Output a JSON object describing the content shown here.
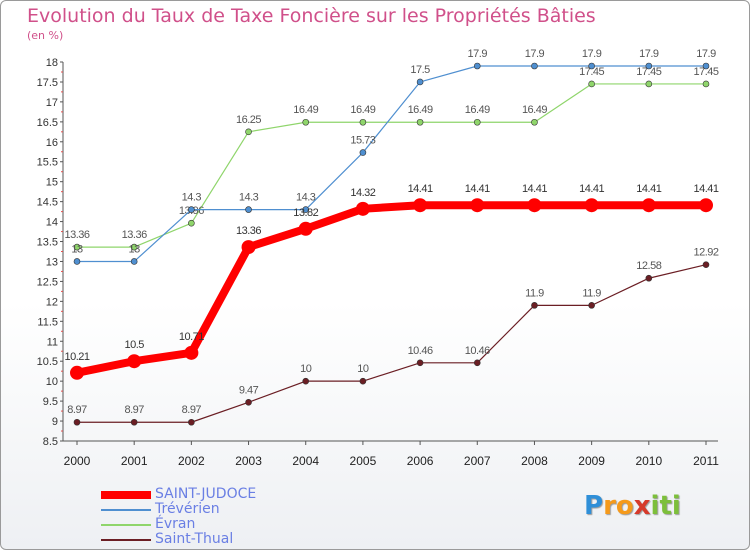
{
  "chart_data": {
    "type": "line",
    "title": "Evolution du Taux de Taxe Foncière sur les Propriétés Bâties",
    "unit_label": "(en %)",
    "x": [
      "2000",
      "2001",
      "2002",
      "2003",
      "2004",
      "2005",
      "2006",
      "2007",
      "2008",
      "2009",
      "2010",
      "2011"
    ],
    "ylim": [
      8.5,
      18
    ],
    "yticks": [
      "8.5",
      "9",
      "9.5",
      "10",
      "10.5",
      "11",
      "11.5",
      "12",
      "12.5",
      "13",
      "13.5",
      "14",
      "14.5",
      "15",
      "15.5",
      "16",
      "16.5",
      "17",
      "17.5",
      "18"
    ],
    "series": [
      {
        "name": "Saint-Thual",
        "color": "#6b1e24",
        "values": [
          8.97,
          8.97,
          8.97,
          9.47,
          10,
          10,
          10.46,
          10.46,
          11.9,
          11.9,
          12.58,
          12.92
        ],
        "labels": [
          "8.97",
          "8.97",
          "8.97",
          "9.47",
          "10",
          "10",
          "10.46",
          "10.46",
          "11.9",
          "11.9",
          "12.58",
          "12.92"
        ]
      },
      {
        "name": "Évran",
        "color": "#8fd56b",
        "values": [
          13.36,
          13.36,
          13.96,
          16.25,
          16.49,
          16.49,
          16.49,
          16.49,
          16.49,
          17.45,
          17.45,
          17.45
        ],
        "labels": [
          "13.36",
          "13.36",
          "13.96",
          "16.25",
          "16.49",
          "16.49",
          "16.49",
          "16.49",
          "16.49",
          "17.45",
          "17.45",
          "17.45"
        ]
      },
      {
        "name": "Trévérien",
        "color": "#4f8fd0",
        "values": [
          13,
          13,
          14.3,
          14.3,
          14.3,
          15.73,
          17.5,
          17.9,
          17.9,
          17.9,
          17.9,
          17.9
        ],
        "labels": [
          "13",
          "13",
          "14.3",
          "14.3",
          "14.3",
          "15.73",
          "17.5",
          "17.9",
          "17.9",
          "17.9",
          "17.9",
          "17.9"
        ]
      },
      {
        "name": "SAINT-JUDOCE",
        "color": "#ff0000",
        "values": [
          10.21,
          10.5,
          10.71,
          13.36,
          13.82,
          14.32,
          14.41,
          14.41,
          14.41,
          14.41,
          14.41,
          14.41
        ],
        "labels": [
          "10.21",
          "10.5",
          "10.71",
          "13.36",
          "13.82",
          "14.32",
          "14.41",
          "14.41",
          "14.41",
          "14.41",
          "14.41",
          "14.41"
        ]
      }
    ],
    "legend": [
      {
        "name": "SAINT-JUDOCE",
        "color": "#ff0000"
      },
      {
        "name": "Trévérien",
        "color": "#4f8fd0"
      },
      {
        "name": "Évran",
        "color": "#8fd56b"
      },
      {
        "name": "Saint-Thual",
        "color": "#6b1e24"
      }
    ]
  },
  "brand": {
    "letters": [
      "P",
      "r",
      "o",
      "x",
      "i",
      "t",
      "i"
    ],
    "colors": [
      "#2f8fd8",
      "#f59a1b",
      "#f59a1b",
      "#d63a2a",
      "#7dbf3b",
      "#7dbf3b",
      "#7dbf3b"
    ]
  }
}
